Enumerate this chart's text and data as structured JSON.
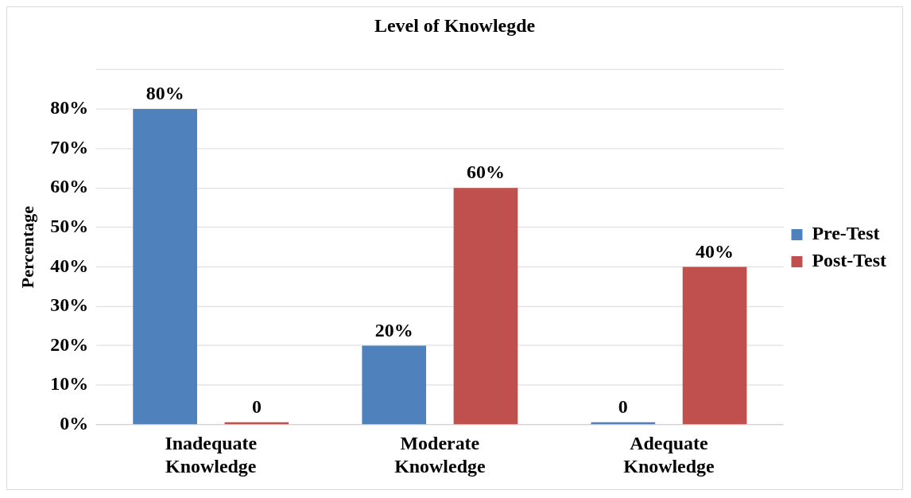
{
  "chart_data": {
    "type": "bar",
    "title": "Level of Knowlegde",
    "ylabel": "Percentage",
    "categories": [
      "Inadequate Knowledge",
      "Moderate Knowledge",
      "Adequate Knowledge"
    ],
    "series": [
      {
        "name": "Pre-Test",
        "color": "#4f81bd",
        "values": [
          80,
          20,
          0
        ],
        "value_labels": [
          "80%",
          "20%",
          "0"
        ]
      },
      {
        "name": "Post-Test",
        "color": "#c0504d",
        "values": [
          0,
          60,
          40
        ],
        "value_labels": [
          "0",
          "60%",
          "40%"
        ]
      }
    ],
    "ylim": [
      0,
      90
    ],
    "yticks": [
      {
        "value": 0,
        "label": "0%"
      },
      {
        "value": 10,
        "label": "10%"
      },
      {
        "value": 20,
        "label": "20%"
      },
      {
        "value": 30,
        "label": "30%"
      },
      {
        "value": 40,
        "label": "40%"
      },
      {
        "value": 50,
        "label": "50%"
      },
      {
        "value": 60,
        "label": "60%"
      },
      {
        "value": 70,
        "label": "70%"
      },
      {
        "value": 80,
        "label": "80%"
      },
      {
        "value": 90,
        "label": null
      }
    ],
    "grid": "y",
    "legend": "right"
  }
}
